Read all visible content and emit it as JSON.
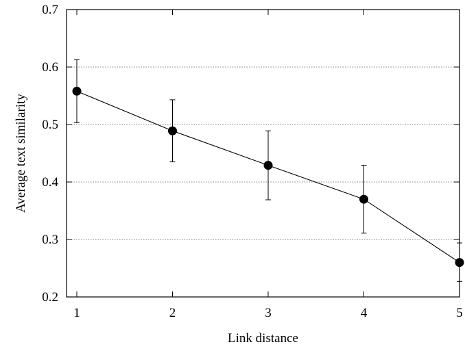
{
  "chart_data": {
    "type": "line",
    "title": "",
    "xlabel": "Link distance",
    "ylabel": "Average text similarity",
    "xlim": [
      1,
      5
    ],
    "ylim": [
      0.2,
      0.7
    ],
    "x_ticks": [
      1,
      2,
      3,
      4,
      5
    ],
    "y_ticks": [
      "0.2",
      "0.3",
      "0.4",
      "0.5",
      "0.6",
      "0.7"
    ],
    "grid": "horizontal dotted",
    "legend": "none",
    "series": [
      {
        "x": [
          1,
          2,
          3,
          4,
          5
        ],
        "values": [
          0.558,
          0.489,
          0.429,
          0.37,
          0.26
        ],
        "err_low": [
          0.503,
          0.435,
          0.369,
          0.311,
          0.227
        ],
        "err_high": [
          0.613,
          0.543,
          0.489,
          0.429,
          0.294
        ],
        "color": "#000000",
        "marker": "filled-circle"
      }
    ]
  }
}
